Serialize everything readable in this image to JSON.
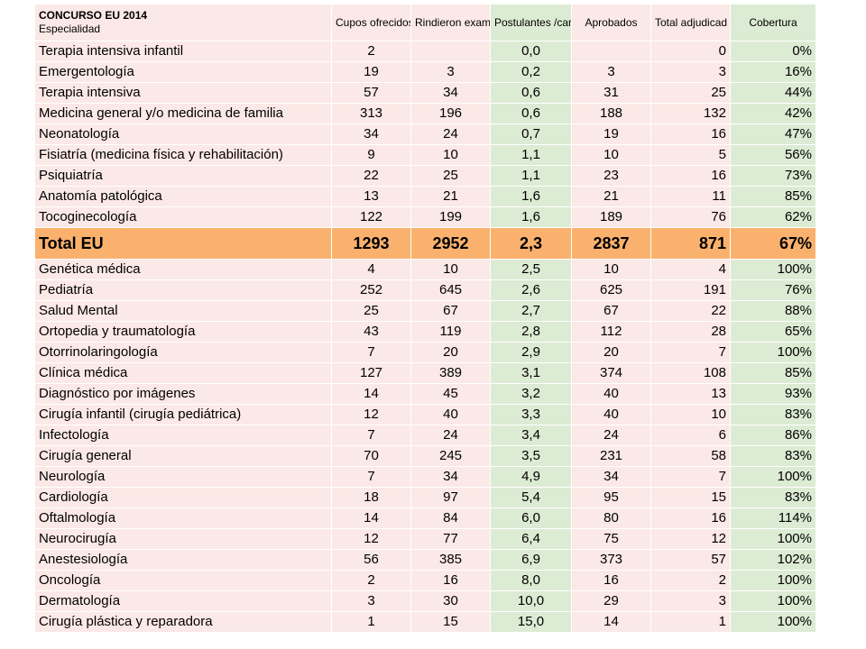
{
  "header": {
    "title": "CONCURSO EU 2014",
    "subtitle": "Especialidad",
    "columns": [
      "Cupos ofrecidos",
      "Rindieron examen",
      "Postulantes /cargos",
      "Aprobados",
      "Total adjudicad",
      "Cobertura"
    ]
  },
  "rows": [
    {
      "name": "Terapia intensiva infantil",
      "cupos": "2",
      "rindieron": "",
      "post": "0,0",
      "aprob": "",
      "total": "0",
      "cob": "0%"
    },
    {
      "name": "Emergentología",
      "cupos": "19",
      "rindieron": "3",
      "post": "0,2",
      "aprob": "3",
      "total": "3",
      "cob": "16%"
    },
    {
      "name": "Terapia intensiva",
      "cupos": "57",
      "rindieron": "34",
      "post": "0,6",
      "aprob": "31",
      "total": "25",
      "cob": "44%"
    },
    {
      "name": "Medicina general y/o medicina de familia",
      "cupos": "313",
      "rindieron": "196",
      "post": "0,6",
      "aprob": "188",
      "total": "132",
      "cob": "42%"
    },
    {
      "name": "Neonatología",
      "cupos": "34",
      "rindieron": "24",
      "post": "0,7",
      "aprob": "19",
      "total": "16",
      "cob": "47%"
    },
    {
      "name": "Fisiatría (medicina física y rehabilitación)",
      "cupos": "9",
      "rindieron": "10",
      "post": "1,1",
      "aprob": "10",
      "total": "5",
      "cob": "56%"
    },
    {
      "name": "Psiquiatría",
      "cupos": "22",
      "rindieron": "25",
      "post": "1,1",
      "aprob": "23",
      "total": "16",
      "cob": "73%"
    },
    {
      "name": "Anatomía patológica",
      "cupos": "13",
      "rindieron": "21",
      "post": "1,6",
      "aprob": "21",
      "total": "11",
      "cob": "85%"
    },
    {
      "name": "Tocoginecología",
      "cupos": "122",
      "rindieron": "199",
      "post": "1,6",
      "aprob": "189",
      "total": "76",
      "cob": "62%"
    },
    {
      "name": "Total EU",
      "cupos": "1293",
      "rindieron": "2952",
      "post": "2,3",
      "aprob": "2837",
      "total": "871",
      "cob": "67%",
      "is_total": true
    },
    {
      "name": "Genética médica",
      "cupos": "4",
      "rindieron": "10",
      "post": "2,5",
      "aprob": "10",
      "total": "4",
      "cob": "100%"
    },
    {
      "name": "Pediatría",
      "cupos": "252",
      "rindieron": "645",
      "post": "2,6",
      "aprob": "625",
      "total": "191",
      "cob": "76%"
    },
    {
      "name": "Salud Mental",
      "cupos": "25",
      "rindieron": "67",
      "post": "2,7",
      "aprob": "67",
      "total": "22",
      "cob": "88%"
    },
    {
      "name": "Ortopedia y traumatología",
      "cupos": "43",
      "rindieron": "119",
      "post": "2,8",
      "aprob": "112",
      "total": "28",
      "cob": "65%"
    },
    {
      "name": "Otorrinolaringología",
      "cupos": "7",
      "rindieron": "20",
      "post": "2,9",
      "aprob": "20",
      "total": "7",
      "cob": "100%"
    },
    {
      "name": "Clínica médica",
      "cupos": "127",
      "rindieron": "389",
      "post": "3,1",
      "aprob": "374",
      "total": "108",
      "cob": "85%"
    },
    {
      "name": "Diagnóstico por imágenes",
      "cupos": "14",
      "rindieron": "45",
      "post": "3,2",
      "aprob": "40",
      "total": "13",
      "cob": "93%"
    },
    {
      "name": "Cirugía infantil (cirugía pediátrica)",
      "cupos": "12",
      "rindieron": "40",
      "post": "3,3",
      "aprob": "40",
      "total": "10",
      "cob": "83%"
    },
    {
      "name": "Infectología",
      "cupos": "7",
      "rindieron": "24",
      "post": "3,4",
      "aprob": "24",
      "total": "6",
      "cob": "86%"
    },
    {
      "name": "Cirugía general",
      "cupos": "70",
      "rindieron": "245",
      "post": "3,5",
      "aprob": "231",
      "total": "58",
      "cob": "83%"
    },
    {
      "name": "Neurología",
      "cupos": "7",
      "rindieron": "34",
      "post": "4,9",
      "aprob": "34",
      "total": "7",
      "cob": "100%"
    },
    {
      "name": "Cardiología",
      "cupos": "18",
      "rindieron": "97",
      "post": "5,4",
      "aprob": "95",
      "total": "15",
      "cob": "83%"
    },
    {
      "name": "Oftalmología",
      "cupos": "14",
      "rindieron": "84",
      "post": "6,0",
      "aprob": "80",
      "total": "16",
      "cob": "114%"
    },
    {
      "name": "Neurocirugía",
      "cupos": "12",
      "rindieron": "77",
      "post": "6,4",
      "aprob": "75",
      "total": "12",
      "cob": "100%"
    },
    {
      "name": "Anestesiología",
      "cupos": "56",
      "rindieron": "385",
      "post": "6,9",
      "aprob": "373",
      "total": "57",
      "cob": "102%"
    },
    {
      "name": "Oncología",
      "cupos": "2",
      "rindieron": "16",
      "post": "8,0",
      "aprob": "16",
      "total": "2",
      "cob": "100%"
    },
    {
      "name": "Dermatología",
      "cupos": "3",
      "rindieron": "30",
      "post": "10,0",
      "aprob": "29",
      "total": "3",
      "cob": "100%"
    },
    {
      "name": "Cirugía plástica y reparadora",
      "cupos": "1",
      "rindieron": "15",
      "post": "15,0",
      "aprob": "14",
      "total": "1",
      "cob": "100%"
    }
  ]
}
